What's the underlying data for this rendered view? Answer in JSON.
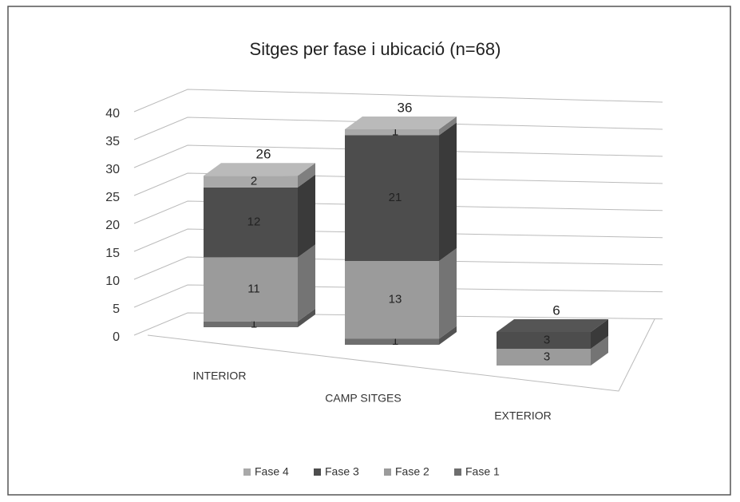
{
  "chart_data": {
    "type": "bar3d_stacked",
    "title": "Sitges per fase i ubicació (n=68)",
    "categories": [
      "INTERIOR",
      "CAMP SITGES",
      "EXTERIOR"
    ],
    "series": [
      {
        "name": "Fase 4",
        "color": "#a9a9a9",
        "values": [
          2,
          1,
          0
        ]
      },
      {
        "name": "Fase 3",
        "color": "#4d4d4d",
        "values": [
          12,
          21,
          3
        ]
      },
      {
        "name": "Fase 2",
        "color": "#9b9b9b",
        "values": [
          11,
          13,
          3
        ]
      },
      {
        "name": "Fase 1",
        "color": "#6e6e6e",
        "values": [
          1,
          1,
          0
        ]
      }
    ],
    "totals": [
      26,
      36,
      6
    ],
    "ylim": [
      0,
      40
    ],
    "yticks": [
      0,
      5,
      10,
      15,
      20,
      25,
      30,
      35,
      40
    ],
    "grid": true,
    "legend": "bottom"
  }
}
